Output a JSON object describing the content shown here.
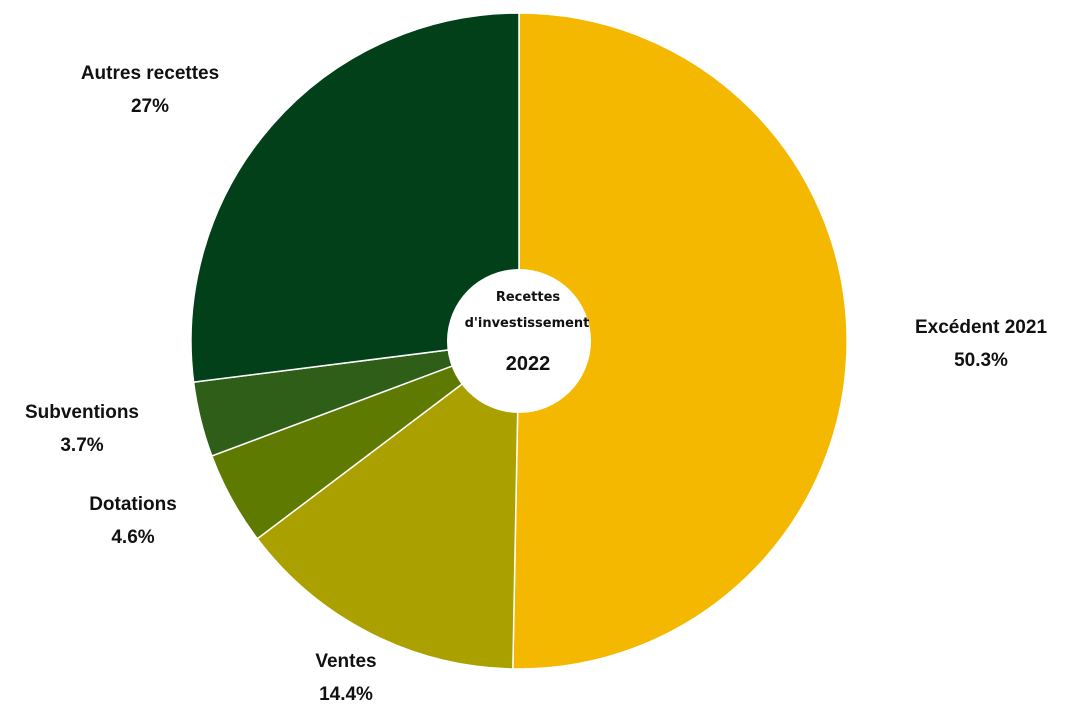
{
  "chart_data": {
    "type": "pie",
    "center_title_line1": "Recettes",
    "center_title_line2": "d'investissement",
    "center_year": "2022",
    "slices": [
      {
        "name": "Excédent 2021",
        "value": 50.3,
        "label": "50.3%",
        "color": "#F5B800"
      },
      {
        "name": "Ventes",
        "value": 14.4,
        "label": "14.4%",
        "color": "#AAA000"
      },
      {
        "name": "Dotations",
        "value": 4.6,
        "label": "4.6%",
        "color": "#5E7A00"
      },
      {
        "name": "Subventions",
        "value": 3.7,
        "label": "3.7%",
        "color": "#2E5E17"
      },
      {
        "name": "Autres recettes",
        "value": 27,
        "label": "27%",
        "color": "#02401A"
      }
    ]
  }
}
